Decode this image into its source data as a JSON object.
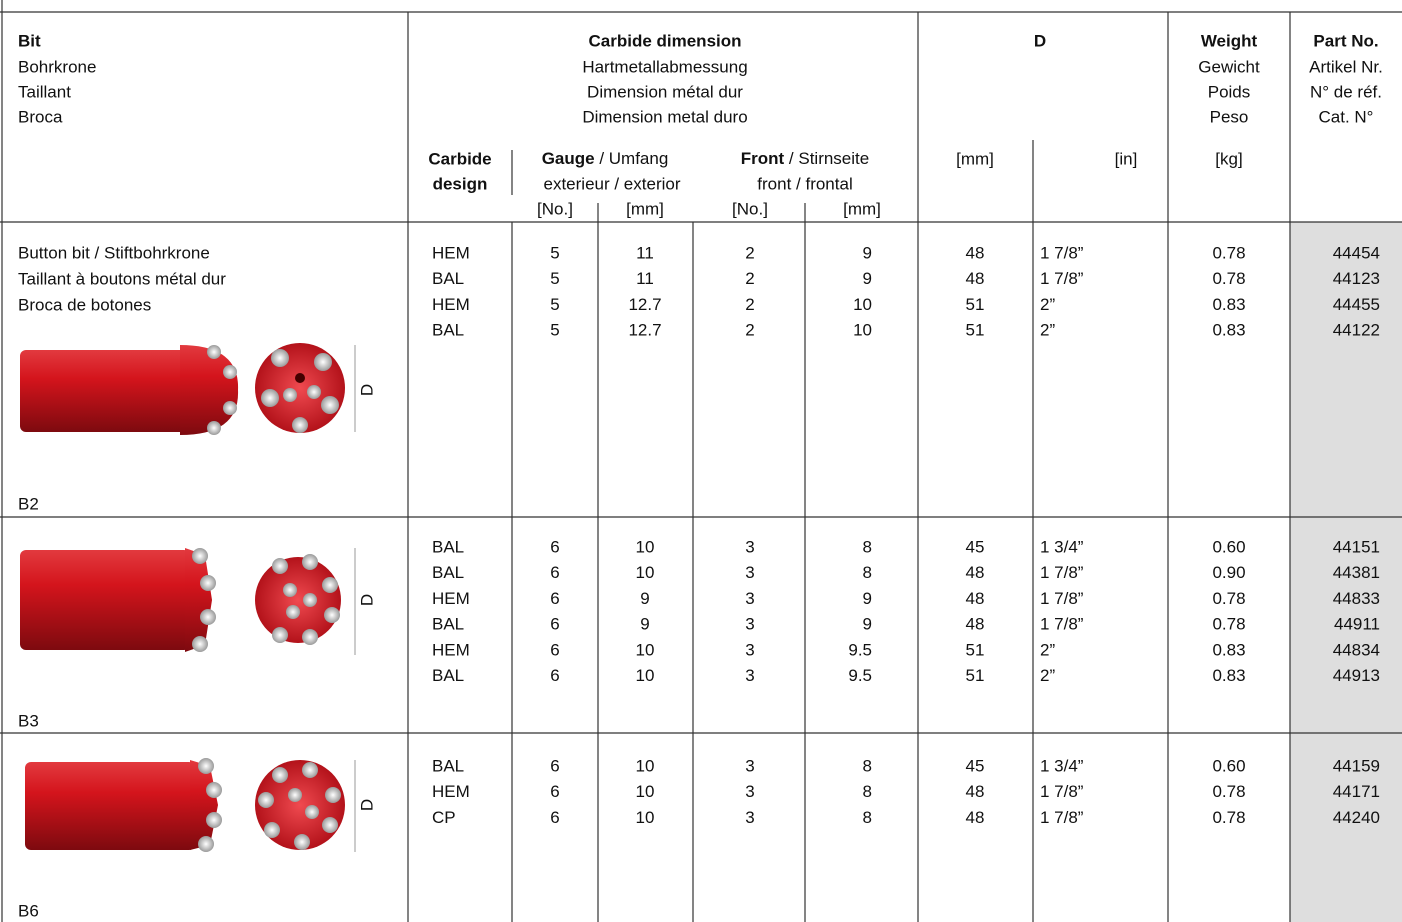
{
  "header": {
    "bit": {
      "title": "Bit",
      "lines": [
        "Bohrkrone",
        "Taillant",
        "Broca"
      ]
    },
    "carbide": {
      "title": "Carbide dimension",
      "lines": [
        "Hartmetallabmessung",
        "Dimension métal dur",
        "Dimension metal duro"
      ]
    },
    "d": {
      "title": "D"
    },
    "weight": {
      "title": "Weight",
      "lines": [
        "Gewicht",
        "Poids",
        "Peso"
      ]
    },
    "part": {
      "title": "Part No.",
      "lines": [
        "Artikel Nr.",
        "N° de réf.",
        "Cat. N°"
      ]
    },
    "carbide_design": [
      "Carbide",
      "design"
    ],
    "gauge": {
      "bold": "Gauge",
      "rest": " / Umfang",
      "line2": "exterieur / exterior",
      "units": [
        "[No.]",
        "[mm]"
      ]
    },
    "front": {
      "bold": "Front",
      "rest": " / Stirnseite",
      "line2": "front / frontal",
      "units": [
        "[No.]",
        "[mm]"
      ]
    },
    "d_units": [
      "[mm]",
      "[in]"
    ],
    "weight_unit": "[kg]"
  },
  "figure_label": "D",
  "rows": [
    {
      "description": [
        "Button bit / Stiftbohrkrone",
        "Taillant à boutons métal dur",
        "Broca de botones"
      ],
      "label": "B2",
      "entries": [
        [
          "HEM",
          "5",
          "11",
          "2",
          "9",
          "48",
          "1 7/8”",
          "0.78",
          "44454"
        ],
        [
          "BAL",
          "5",
          "11",
          "2",
          "9",
          "48",
          "1 7/8”",
          "0.78",
          "44123"
        ],
        [
          "HEM",
          "5",
          "12.7",
          "2",
          "10",
          "51",
          "2”",
          "0.83",
          "44455"
        ],
        [
          "BAL",
          "5",
          "12.7",
          "2",
          "10",
          "51",
          "2”",
          "0.83",
          "44122"
        ]
      ]
    },
    {
      "description": [],
      "label": "B3",
      "entries": [
        [
          "BAL",
          "6",
          "10",
          "3",
          "8",
          "45",
          "1 3/4”",
          "0.60",
          "44151"
        ],
        [
          "BAL",
          "6",
          "10",
          "3",
          "8",
          "48",
          "1 7/8”",
          "0.90",
          "44381"
        ],
        [
          "HEM",
          "6",
          "9",
          "3",
          "9",
          "48",
          "1 7/8”",
          "0.78",
          "44833"
        ],
        [
          "BAL",
          "6",
          "9",
          "3",
          "9",
          "48",
          "1 7/8”",
          "0.78",
          "44911"
        ],
        [
          "HEM",
          "6",
          "10",
          "3",
          "9.5",
          "51",
          "2”",
          "0.83",
          "44834"
        ],
        [
          "BAL",
          "6",
          "10",
          "3",
          "9.5",
          "51",
          "2”",
          "0.83",
          "44913"
        ]
      ]
    },
    {
      "description": [],
      "label": "B6",
      "entries": [
        [
          "BAL",
          "6",
          "10",
          "3",
          "8",
          "45",
          "1 3/4”",
          "0.60",
          "44159"
        ],
        [
          "HEM",
          "6",
          "10",
          "3",
          "8",
          "48",
          "1 7/8”",
          "0.78",
          "44171"
        ],
        [
          "CP",
          "6",
          "10",
          "3",
          "8",
          "48",
          "1 7/8”",
          "0.78",
          "44240"
        ]
      ]
    }
  ]
}
